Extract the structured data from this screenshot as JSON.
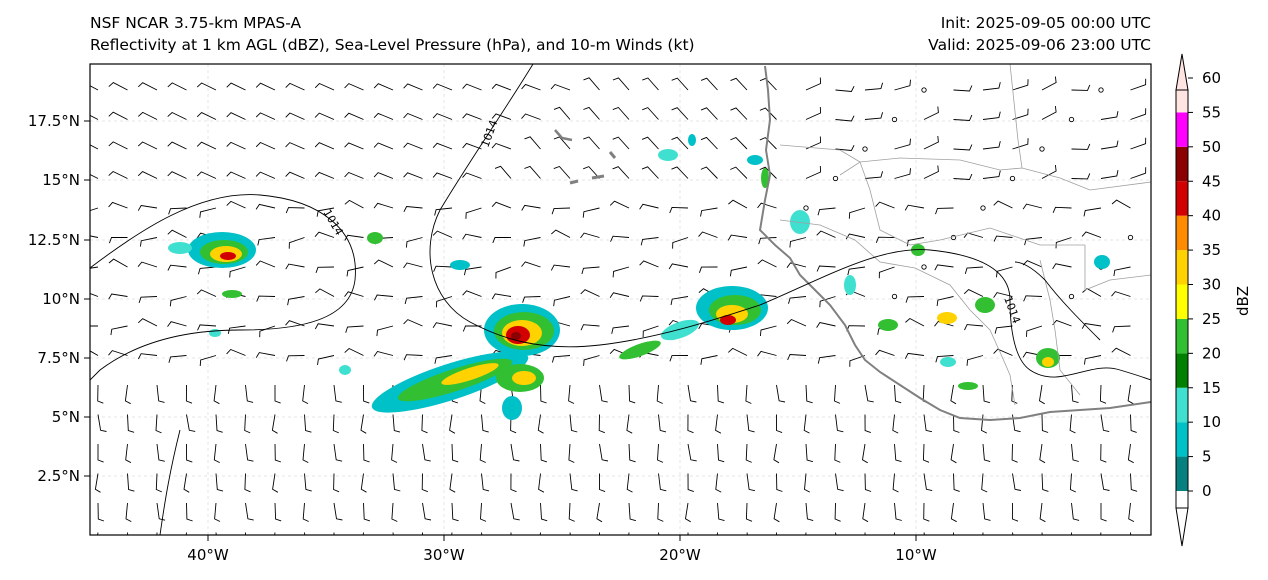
{
  "titles": {
    "left_line1": "NSF NCAR 3.75-km MPAS-A",
    "left_line2": "Reflectivity at 1 km AGL (dBZ), Sea-Level Pressure (hPa), and 10-m Winds (kt)",
    "right_line1": "Init: 2025-09-05 00:00 UTC",
    "right_line2": "Valid: 2025-09-06 23:00 UTC"
  },
  "axes": {
    "lat_ticks": [
      "17.5°N",
      "15°N",
      "12.5°N",
      "10°N",
      "7.5°N",
      "5°N",
      "2.5°N"
    ],
    "lon_ticks": [
      "40°W",
      "30°W",
      "20°W",
      "10°W"
    ]
  },
  "contours": {
    "isobar_labels": [
      "1014",
      "1014",
      "1014"
    ]
  },
  "colorbar": {
    "label": "dBZ",
    "levels": [
      "0",
      "5",
      "10",
      "15",
      "20",
      "25",
      "30",
      "35",
      "40",
      "45",
      "50",
      "55",
      "60"
    ],
    "colors": [
      "#078080",
      "#00c0c8",
      "#40e0d0",
      "#008000",
      "#32c032",
      "#ffff00",
      "#ffd200",
      "#ff8c00",
      "#d20000",
      "#8b0000",
      "#ff00ff",
      "#ffe4e1"
    ]
  },
  "legend_colors": {
    "coast": "#808080",
    "border": "#a0a0a0",
    "isobar": "#000000",
    "barb": "#000000"
  }
}
